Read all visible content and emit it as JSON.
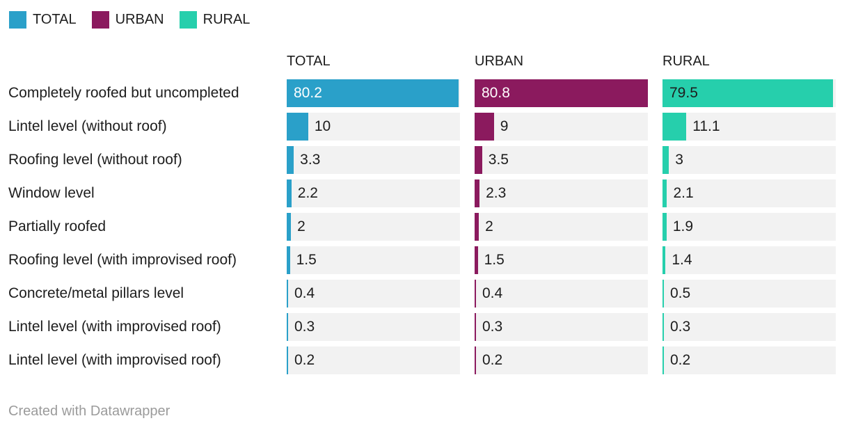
{
  "legend": {
    "items": [
      {
        "label": "TOTAL",
        "color": "#2AA0C9"
      },
      {
        "label": "URBAN",
        "color": "#8B1A5E"
      },
      {
        "label": "RURAL",
        "color": "#26CFAC"
      }
    ]
  },
  "chart_data": {
    "type": "bar",
    "variant": "horizontal-split-bars",
    "title": "",
    "xlabel": "",
    "ylabel": "",
    "grid": false,
    "legend_position": "top-left",
    "xmax": 80.8,
    "track_color": "#F2F2F2",
    "categories": [
      "Completely roofed but uncompleted",
      "Lintel level (without roof)",
      "Roofing level (without roof)",
      "Window level",
      "Partially roofed",
      "Roofing level (with improvised roof)",
      "Concrete/metal pillars level",
      "Lintel level (with improvised roof)",
      "Lintel level (with improvised roof)"
    ],
    "series": [
      {
        "name": "TOTAL",
        "color": "#2AA0C9",
        "inside_label_color": "#FFFFFF",
        "values": [
          80.2,
          10,
          3.3,
          2.2,
          2,
          1.5,
          0.4,
          0.3,
          0.2
        ]
      },
      {
        "name": "URBAN",
        "color": "#8B1A5E",
        "inside_label_color": "#FFFFFF",
        "values": [
          80.8,
          9,
          3.5,
          2.3,
          2,
          1.5,
          0.4,
          0.3,
          0.2
        ]
      },
      {
        "name": "RURAL",
        "color": "#26CFAC",
        "inside_label_color": "#1D1D1D",
        "values": [
          79.5,
          11.1,
          3,
          2.1,
          1.9,
          1.4,
          0.5,
          0.3,
          0.2
        ]
      }
    ]
  },
  "footer": {
    "credit": "Created with Datawrapper"
  }
}
